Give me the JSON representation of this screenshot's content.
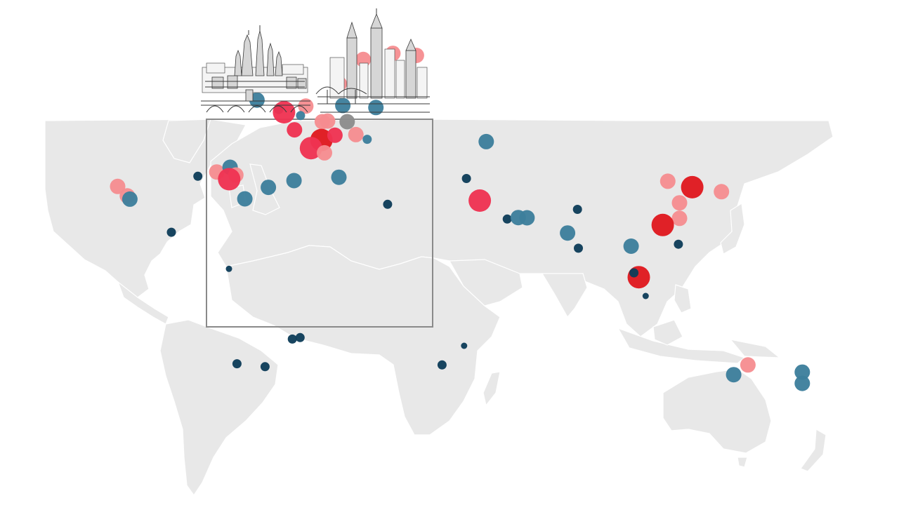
{
  "map": {
    "background": "#ffffff",
    "land_color": "#e8e8e8",
    "border_color": "#ffffff",
    "inset_frame_color": "#8a8a8a"
  },
  "illustrations": [
    {
      "id": "prague-sketch",
      "icon": "prague-castle-sketch"
    },
    {
      "id": "new-york-sketch",
      "icon": "new-york-skyline-sketch"
    }
  ],
  "legend_colors": {
    "deep_red": "#e0191f",
    "red": "#ef3352",
    "pink": "#f58c8f",
    "teal": "#3d7f9c",
    "navy": "#0f3d59",
    "grey": "#8c8c8c"
  },
  "markers": [
    {
      "group": "north-america",
      "lat": 37.8,
      "lon": -122.4,
      "size": "m",
      "color": "pink"
    },
    {
      "group": "north-america",
      "lat": 34.0,
      "lon": -118.2,
      "size": "m",
      "color": "pink"
    },
    {
      "group": "north-america",
      "lat": 32.7,
      "lon": -117.1,
      "size": "m",
      "color": "teal"
    },
    {
      "group": "north-america",
      "lat": 41.9,
      "lon": -87.6,
      "size": "s",
      "color": "navy"
    },
    {
      "group": "north-america",
      "lat": 43.6,
      "lon": -79.4,
      "size": "m",
      "color": "pink"
    },
    {
      "group": "north-america",
      "lat": 45.5,
      "lon": -73.6,
      "size": "m",
      "color": "teal"
    },
    {
      "group": "north-america",
      "lat": 42.4,
      "lon": -71.1,
      "size": "m",
      "color": "pink"
    },
    {
      "group": "north-america",
      "lat": 40.7,
      "lon": -74.0,
      "size": "l",
      "color": "red"
    },
    {
      "group": "north-america",
      "lat": 19.4,
      "lon": -99.1,
      "size": "s",
      "color": "navy"
    },
    {
      "group": "south-america",
      "lat": 4.7,
      "lon": -74.1,
      "size": "xs",
      "color": "navy"
    },
    {
      "group": "south-america",
      "lat": -23.5,
      "lon": -46.6,
      "size": "s",
      "color": "navy"
    },
    {
      "group": "south-america",
      "lat": -22.9,
      "lon": -43.2,
      "size": "s",
      "color": "navy"
    },
    {
      "group": "south-america",
      "lat": -33.4,
      "lon": -70.6,
      "size": "s",
      "color": "navy"
    },
    {
      "group": "south-america",
      "lat": -34.6,
      "lon": -58.4,
      "size": "s",
      "color": "navy"
    },
    {
      "group": "europe",
      "lat": 59.3,
      "lon": 18.1,
      "size": "m",
      "color": "pink"
    },
    {
      "group": "europe",
      "lat": 60.2,
      "lon": 24.9,
      "size": "m",
      "color": "pink"
    },
    {
      "group": "europe",
      "lat": 59.9,
      "lon": 30.3,
      "size": "m",
      "color": "pink"
    },
    {
      "group": "europe",
      "lat": 55.7,
      "lon": 12.6,
      "size": "m",
      "color": "pink"
    },
    {
      "group": "europe",
      "lat": 55.9,
      "lon": -3.2,
      "size": "m",
      "color": "teal"
    },
    {
      "group": "europe",
      "lat": 53.3,
      "lon": -6.3,
      "size": "m",
      "color": "teal"
    },
    {
      "group": "europe",
      "lat": 51.9,
      "lon": -1.3,
      "size": "s",
      "color": "navy"
    },
    {
      "group": "europe",
      "lat": 51.5,
      "lon": -0.1,
      "size": "l",
      "color": "red"
    },
    {
      "group": "europe",
      "lat": 52.4,
      "lon": 4.9,
      "size": "m",
      "color": "pink"
    },
    {
      "group": "europe",
      "lat": 51.0,
      "lon": 3.7,
      "size": "s",
      "color": "teal"
    },
    {
      "group": "europe",
      "lat": 52.5,
      "lon": 13.4,
      "size": "m",
      "color": "teal"
    },
    {
      "group": "europe",
      "lat": 52.2,
      "lon": 21.0,
      "size": "m",
      "color": "teal"
    },
    {
      "group": "europe",
      "lat": 48.9,
      "lon": 2.3,
      "size": "m",
      "color": "red"
    },
    {
      "group": "europe",
      "lat": 50.1,
      "lon": 8.7,
      "size": "m",
      "color": "pink"
    },
    {
      "group": "europe",
      "lat": 50.2,
      "lon": 9.9,
      "size": "m",
      "color": "pink"
    },
    {
      "group": "europe",
      "lat": 50.1,
      "lon": 14.4,
      "size": "m",
      "color": "grey"
    },
    {
      "group": "europe",
      "lat": 47.4,
      "lon": 8.5,
      "size": "l",
      "color": "deep_red"
    },
    {
      "group": "europe",
      "lat": 48.1,
      "lon": 11.6,
      "size": "m",
      "color": "red"
    },
    {
      "group": "europe",
      "lat": 48.2,
      "lon": 16.4,
      "size": "m",
      "color": "pink"
    },
    {
      "group": "europe",
      "lat": 47.5,
      "lon": 19.0,
      "size": "s",
      "color": "teal"
    },
    {
      "group": "europe",
      "lat": 46.2,
      "lon": 6.1,
      "size": "l",
      "color": "red"
    },
    {
      "group": "europe",
      "lat": 45.5,
      "lon": 9.2,
      "size": "m",
      "color": "pink"
    },
    {
      "group": "europe",
      "lat": 41.4,
      "lon": 2.2,
      "size": "m",
      "color": "teal"
    },
    {
      "group": "europe",
      "lat": 40.4,
      "lon": -3.7,
      "size": "m",
      "color": "teal"
    },
    {
      "group": "europe",
      "lat": 38.7,
      "lon": -9.1,
      "size": "m",
      "color": "teal"
    },
    {
      "group": "europe",
      "lat": 41.9,
      "lon": 12.5,
      "size": "m",
      "color": "teal"
    },
    {
      "group": "europe",
      "lat": 37.9,
      "lon": 23.7,
      "size": "s",
      "color": "navy"
    },
    {
      "group": "middle-east-africa",
      "lat": 55.8,
      "lon": 37.6,
      "size": "m",
      "color": "teal"
    },
    {
      "group": "middle-east-africa",
      "lat": 41.0,
      "lon": 29.0,
      "size": "s",
      "color": "navy"
    },
    {
      "group": "middle-east-africa",
      "lat": 32.1,
      "lon": 34.8,
      "size": "l",
      "color": "red"
    },
    {
      "group": "middle-east-africa",
      "lat": 24.7,
      "lon": 46.7,
      "size": "s",
      "color": "navy"
    },
    {
      "group": "middle-east-africa",
      "lat": 25.3,
      "lon": 51.5,
      "size": "m",
      "color": "teal"
    },
    {
      "group": "middle-east-africa",
      "lat": 25.2,
      "lon": 55.3,
      "size": "m",
      "color": "teal"
    },
    {
      "group": "middle-east-africa",
      "lat": -26.2,
      "lon": 28.0,
      "size": "xs",
      "color": "navy"
    },
    {
      "group": "middle-east-africa",
      "lat": -33.9,
      "lon": 18.4,
      "size": "s",
      "color": "navy"
    },
    {
      "group": "asia-pacific",
      "lat": 28.6,
      "lon": 77.2,
      "size": "s",
      "color": "navy"
    },
    {
      "group": "asia-pacific",
      "lat": 19.1,
      "lon": 72.9,
      "size": "m",
      "color": "teal"
    },
    {
      "group": "asia-pacific",
      "lat": 13.0,
      "lon": 77.6,
      "size": "s",
      "color": "navy"
    },
    {
      "group": "asia-pacific",
      "lat": 39.9,
      "lon": 116.4,
      "size": "m",
      "color": "pink"
    },
    {
      "group": "asia-pacific",
      "lat": 37.5,
      "lon": 127.0,
      "size": "l",
      "color": "deep_red"
    },
    {
      "group": "asia-pacific",
      "lat": 35.7,
      "lon": 139.7,
      "size": "m",
      "color": "pink"
    },
    {
      "group": "asia-pacific",
      "lat": 31.2,
      "lon": 121.5,
      "size": "m",
      "color": "pink"
    },
    {
      "group": "asia-pacific",
      "lat": 25.0,
      "lon": 121.5,
      "size": "m",
      "color": "pink"
    },
    {
      "group": "asia-pacific",
      "lat": 22.3,
      "lon": 114.2,
      "size": "l",
      "color": "deep_red"
    },
    {
      "group": "asia-pacific",
      "lat": 14.6,
      "lon": 121.0,
      "size": "s",
      "color": "navy"
    },
    {
      "group": "asia-pacific",
      "lat": 13.8,
      "lon": 100.5,
      "size": "m",
      "color": "teal"
    },
    {
      "group": "asia-pacific",
      "lat": 1.35,
      "lon": 103.8,
      "size": "l",
      "color": "deep_red"
    },
    {
      "group": "asia-pacific",
      "lat": 3.1,
      "lon": 101.7,
      "size": "s",
      "color": "navy"
    },
    {
      "group": "asia-pacific",
      "lat": -6.2,
      "lon": 106.8,
      "size": "xs",
      "color": "navy"
    },
    {
      "group": "asia-pacific",
      "lat": -33.9,
      "lon": 151.2,
      "size": "m",
      "color": "pink"
    },
    {
      "group": "asia-pacific",
      "lat": -37.8,
      "lon": 145.0,
      "size": "m",
      "color": "teal"
    },
    {
      "group": "asia-pacific",
      "lat": -36.8,
      "lon": 174.8,
      "size": "m",
      "color": "teal"
    },
    {
      "group": "asia-pacific",
      "lat": -41.3,
      "lon": 174.8,
      "size": "m",
      "color": "teal"
    }
  ]
}
